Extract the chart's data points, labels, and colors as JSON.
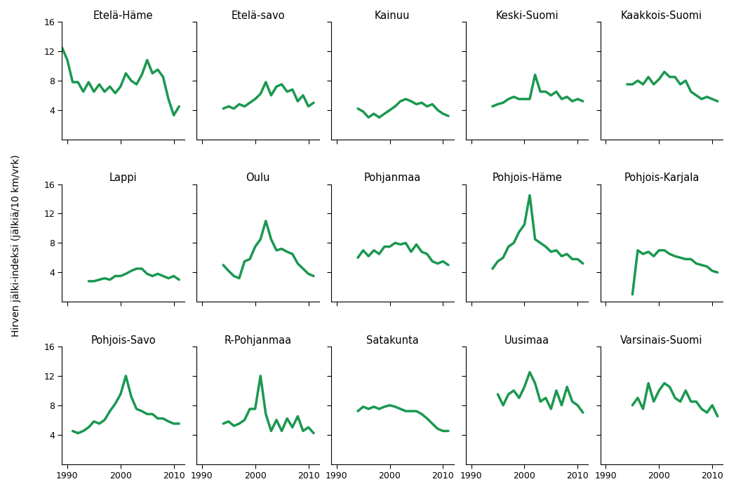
{
  "ylabel": "Hirven jälki-indeksi (jälkiä/10 km/vrk)",
  "line_color": "#1a9850",
  "line_width": 2.5,
  "ylim": [
    0,
    16
  ],
  "yticks": [
    4,
    8,
    12,
    16
  ],
  "xlim": [
    1989,
    2012
  ],
  "xticks": [
    1990,
    2000,
    2010
  ],
  "years": [
    1989,
    1990,
    1991,
    1992,
    1993,
    1994,
    1995,
    1996,
    1997,
    1998,
    1999,
    2000,
    2001,
    2002,
    2003,
    2004,
    2005,
    2006,
    2007,
    2008,
    2009,
    2010,
    2011
  ],
  "subplots": [
    {
      "title": "Etelä-Häme",
      "values": [
        12.5,
        10.8,
        7.8,
        7.8,
        6.5,
        7.8,
        6.5,
        7.5,
        6.5,
        7.2,
        6.3,
        7.2,
        9.0,
        8.0,
        7.5,
        8.8,
        10.8,
        9.0,
        9.5,
        8.5,
        5.5,
        3.3,
        4.5
      ]
    },
    {
      "title": "Etelä-savo",
      "values": [
        null,
        null,
        null,
        null,
        null,
        4.2,
        4.5,
        4.2,
        4.8,
        4.5,
        5.0,
        5.5,
        6.2,
        7.8,
        6.0,
        7.2,
        7.5,
        6.5,
        6.8,
        5.2,
        6.0,
        4.5,
        5.0
      ]
    },
    {
      "title": "Kainuu",
      "values": [
        null,
        null,
        null,
        null,
        null,
        4.2,
        3.8,
        3.0,
        3.5,
        3.0,
        3.5,
        4.0,
        4.5,
        5.2,
        5.5,
        5.2,
        4.8,
        5.0,
        4.5,
        4.8,
        4.0,
        3.5,
        3.2
      ]
    },
    {
      "title": "Keski-Suomi",
      "values": [
        null,
        null,
        null,
        null,
        null,
        4.5,
        4.8,
        5.0,
        5.5,
        5.8,
        5.5,
        5.5,
        5.5,
        8.8,
        6.5,
        6.5,
        6.0,
        6.5,
        5.5,
        5.8,
        5.2,
        5.5,
        5.2
      ]
    },
    {
      "title": "Kaakkois-Suomi",
      "values": [
        null,
        null,
        null,
        null,
        null,
        7.5,
        7.5,
        8.0,
        7.5,
        8.5,
        7.5,
        8.2,
        9.2,
        8.5,
        8.5,
        7.5,
        8.0,
        6.5,
        6.0,
        5.5,
        5.8,
        5.5,
        5.2
      ]
    },
    {
      "title": "Lappi",
      "values": [
        null,
        null,
        null,
        null,
        null,
        2.8,
        2.8,
        3.0,
        3.2,
        3.0,
        3.5,
        3.5,
        3.8,
        4.2,
        4.5,
        4.5,
        3.8,
        3.5,
        3.8,
        3.5,
        3.2,
        3.5,
        3.0
      ]
    },
    {
      "title": "Oulu",
      "values": [
        null,
        null,
        null,
        null,
        null,
        5.0,
        4.2,
        3.5,
        3.2,
        5.5,
        5.8,
        7.5,
        8.5,
        11.0,
        8.5,
        7.0,
        7.2,
        6.8,
        6.5,
        5.2,
        4.5,
        3.8,
        3.5
      ]
    },
    {
      "title": "Pohjanmaa",
      "values": [
        null,
        null,
        null,
        null,
        null,
        6.0,
        7.0,
        6.2,
        7.0,
        6.5,
        7.5,
        7.5,
        8.0,
        7.8,
        8.0,
        6.8,
        7.8,
        6.8,
        6.5,
        5.5,
        5.2,
        5.5,
        5.0
      ]
    },
    {
      "title": "Pohjois-Häme",
      "values": [
        null,
        null,
        null,
        null,
        null,
        4.5,
        5.5,
        6.0,
        7.5,
        8.0,
        9.5,
        10.5,
        14.5,
        8.5,
        8.0,
        7.5,
        6.8,
        7.0,
        6.2,
        6.5,
        5.8,
        5.8,
        5.2
      ]
    },
    {
      "title": "Pohjois-Karjala",
      "values": [
        null,
        null,
        null,
        null,
        null,
        null,
        1.0,
        7.0,
        6.5,
        6.8,
        6.2,
        7.0,
        7.0,
        6.5,
        6.2,
        6.0,
        5.8,
        5.8,
        5.2,
        5.0,
        4.8,
        4.2,
        4.0
      ]
    },
    {
      "title": "Pohjois-Savo",
      "values": [
        null,
        null,
        4.5,
        4.2,
        4.5,
        5.0,
        5.8,
        5.5,
        6.0,
        7.2,
        8.2,
        9.5,
        12.0,
        9.2,
        7.5,
        7.2,
        6.8,
        6.8,
        6.2,
        6.2,
        5.8,
        5.5,
        5.5
      ]
    },
    {
      "title": "R-Pohjanmaa",
      "values": [
        null,
        null,
        null,
        null,
        null,
        5.5,
        5.8,
        5.2,
        5.5,
        6.0,
        7.5,
        7.5,
        12.0,
        6.8,
        4.5,
        6.0,
        4.5,
        6.2,
        5.0,
        6.5,
        4.5,
        5.0,
        4.2
      ]
    },
    {
      "title": "Satakunta",
      "values": [
        null,
        null,
        null,
        null,
        null,
        7.2,
        7.8,
        7.5,
        7.8,
        7.5,
        7.8,
        8.0,
        7.8,
        7.5,
        7.2,
        7.2,
        7.2,
        6.8,
        6.2,
        5.5,
        4.8,
        4.5,
        4.5
      ]
    },
    {
      "title": "Uusimaa",
      "values": [
        null,
        null,
        null,
        null,
        null,
        null,
        9.5,
        8.0,
        9.5,
        10.0,
        9.0,
        10.5,
        12.5,
        11.0,
        8.5,
        9.0,
        7.5,
        10.0,
        8.0,
        10.5,
        8.5,
        8.0,
        7.0
      ]
    },
    {
      "title": "Varsinais-Suomi",
      "values": [
        null,
        null,
        null,
        null,
        null,
        null,
        8.0,
        9.0,
        7.5,
        11.0,
        8.5,
        10.0,
        11.0,
        10.5,
        9.0,
        8.5,
        10.0,
        8.5,
        8.5,
        7.5,
        7.0,
        8.0,
        6.5
      ]
    }
  ]
}
